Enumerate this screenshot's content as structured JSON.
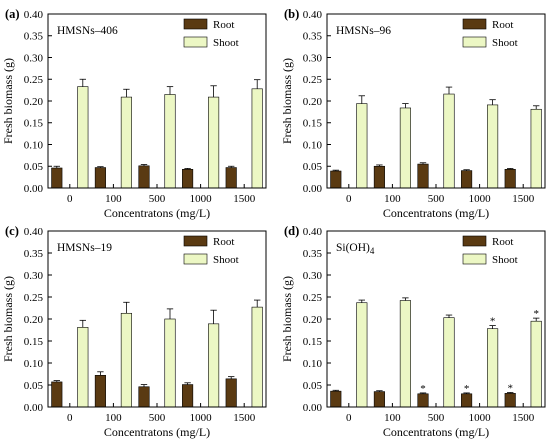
{
  "colors": {
    "root": "#5a3a12",
    "shoot": "#ecf7c4",
    "stroke": "#000000"
  },
  "legend_labels": {
    "root": "Root",
    "shoot": "Shoot"
  },
  "chart_data": [
    {
      "type": "bar",
      "panel": "(a)",
      "title": "HMSNs–406",
      "xlabel": "Concentratons (mg/L)",
      "ylabel": "Fresh biomass (g)",
      "categories": [
        "0",
        "100",
        "500",
        "1000",
        "1500"
      ],
      "yticks": [
        "0.00",
        "0.05",
        "0.10",
        "0.15",
        "0.20",
        "0.25",
        "0.30",
        "0.35",
        "0.40"
      ],
      "ylim": [
        0,
        0.4
      ],
      "legend": "top-right",
      "series": [
        {
          "name": "Root",
          "values": [
            0.046,
            0.047,
            0.051,
            0.043,
            0.047
          ],
          "errors": [
            0.004,
            0.002,
            0.003,
            0.002,
            0.003
          ],
          "marks": [
            "",
            "",
            "",
            "",
            ""
          ]
        },
        {
          "name": "Shoot",
          "values": [
            0.233,
            0.209,
            0.215,
            0.209,
            0.228
          ],
          "errors": [
            0.017,
            0.018,
            0.018,
            0.026,
            0.021
          ],
          "marks": [
            "",
            "",
            "",
            "",
            ""
          ]
        }
      ]
    },
    {
      "type": "bar",
      "panel": "(b)",
      "title": "HMSNs–96",
      "xlabel": "Concentratons (mg/L)",
      "ylabel": "Fresh biomass (g)",
      "categories": [
        "0",
        "100",
        "500",
        "1000",
        "1500"
      ],
      "yticks": [
        "0.00",
        "0.05",
        "0.10",
        "0.15",
        "0.20",
        "0.25",
        "0.30",
        "0.35",
        "0.40"
      ],
      "ylim": [
        0,
        0.4
      ],
      "legend": "top-right",
      "series": [
        {
          "name": "Root",
          "values": [
            0.039,
            0.05,
            0.055,
            0.04,
            0.043
          ],
          "errors": [
            0.002,
            0.003,
            0.003,
            0.002,
            0.002
          ],
          "marks": [
            "",
            "",
            "",
            "",
            ""
          ]
        },
        {
          "name": "Shoot",
          "values": [
            0.194,
            0.184,
            0.216,
            0.191,
            0.181
          ],
          "errors": [
            0.018,
            0.01,
            0.016,
            0.012,
            0.008
          ],
          "marks": [
            "",
            "",
            "",
            "",
            ""
          ]
        }
      ]
    },
    {
      "type": "bar",
      "panel": "(c)",
      "title": "HMSNs–19",
      "xlabel": "Concentratons (mg/L)",
      "ylabel": "Fresh biomass (g)",
      "categories": [
        "0",
        "100",
        "500",
        "1000",
        "1500"
      ],
      "yticks": [
        "0.00",
        "0.05",
        "0.10",
        "0.15",
        "0.20",
        "0.25",
        "0.30",
        "0.35",
        "0.40"
      ],
      "ylim": [
        0,
        0.4
      ],
      "legend": "top-right",
      "series": [
        {
          "name": "Root",
          "values": [
            0.057,
            0.072,
            0.046,
            0.051,
            0.064
          ],
          "errors": [
            0.003,
            0.008,
            0.005,
            0.004,
            0.005
          ],
          "marks": [
            "",
            "",
            "",
            "",
            ""
          ]
        },
        {
          "name": "Shoot",
          "values": [
            0.181,
            0.213,
            0.2,
            0.189,
            0.227
          ],
          "errors": [
            0.016,
            0.025,
            0.023,
            0.031,
            0.016
          ],
          "marks": [
            "",
            "",
            "",
            "",
            ""
          ]
        }
      ]
    },
    {
      "type": "bar",
      "panel": "(d)",
      "title": "Si(OH)",
      "title_subscript": "4",
      "xlabel": "Concentratons (mg/L)",
      "ylabel": "Fresh biomass (g)",
      "categories": [
        "0",
        "100",
        "500",
        "1000",
        "1500"
      ],
      "yticks": [
        "0.00",
        "0.05",
        "0.10",
        "0.15",
        "0.20",
        "0.25",
        "0.30",
        "0.35",
        "0.40"
      ],
      "ylim": [
        0,
        0.4
      ],
      "legend": "top-right",
      "series": [
        {
          "name": "Root",
          "values": [
            0.036,
            0.035,
            0.03,
            0.03,
            0.031
          ],
          "errors": [
            0.002,
            0.002,
            0.002,
            0.002,
            0.002
          ],
          "marks": [
            "",
            "",
            "*",
            "*",
            "*"
          ]
        },
        {
          "name": "Shoot",
          "values": [
            0.237,
            0.242,
            0.203,
            0.178,
            0.195
          ],
          "errors": [
            0.006,
            0.006,
            0.006,
            0.007,
            0.007
          ],
          "marks": [
            "",
            "",
            "",
            "*",
            "*"
          ]
        }
      ]
    }
  ]
}
